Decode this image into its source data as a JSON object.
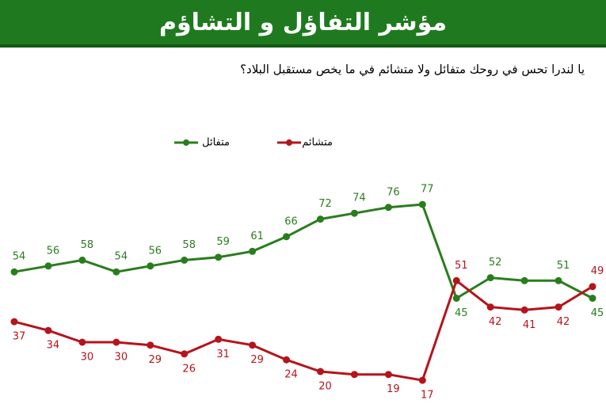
{
  "chart_data": {
    "type": "line",
    "title": "مؤشر التفاؤل و التشاؤم",
    "subtitle": "يا لندرا تحس في روحك متفائل ولا متشائم في ما يخص مستقبل البلاد؟",
    "categories": [
      null,
      null,
      null,
      null,
      null,
      null,
      null,
      null,
      null,
      null,
      null,
      null,
      null,
      null,
      null,
      null,
      null,
      null
    ],
    "series": [
      {
        "name": "متفائل",
        "color": "#2a7d1e",
        "values": [
          54,
          56,
          58,
          54,
          56,
          58,
          59,
          61,
          66,
          72,
          74,
          76,
          77,
          45,
          52,
          51,
          51,
          45
        ],
        "value_labels": [
          "54",
          "56",
          "58",
          "54",
          "56",
          "58",
          "59",
          "61",
          "66",
          "72",
          "74",
          "76",
          "77",
          "45",
          "52",
          null,
          "51",
          "45"
        ]
      },
      {
        "name": "متشائم",
        "color": "#b5141c",
        "values": [
          37,
          34,
          30,
          30,
          29,
          26,
          31,
          29,
          24,
          20,
          19,
          19,
          17,
          51,
          42,
          41,
          42,
          49
        ],
        "value_labels": [
          "37",
          "34",
          "30",
          "30",
          "29",
          "26",
          "31",
          "29",
          "24",
          "20",
          null,
          "19",
          "17",
          "51",
          "42",
          "41",
          "42",
          "49"
        ]
      }
    ],
    "ylim": [
      10,
      90
    ]
  }
}
